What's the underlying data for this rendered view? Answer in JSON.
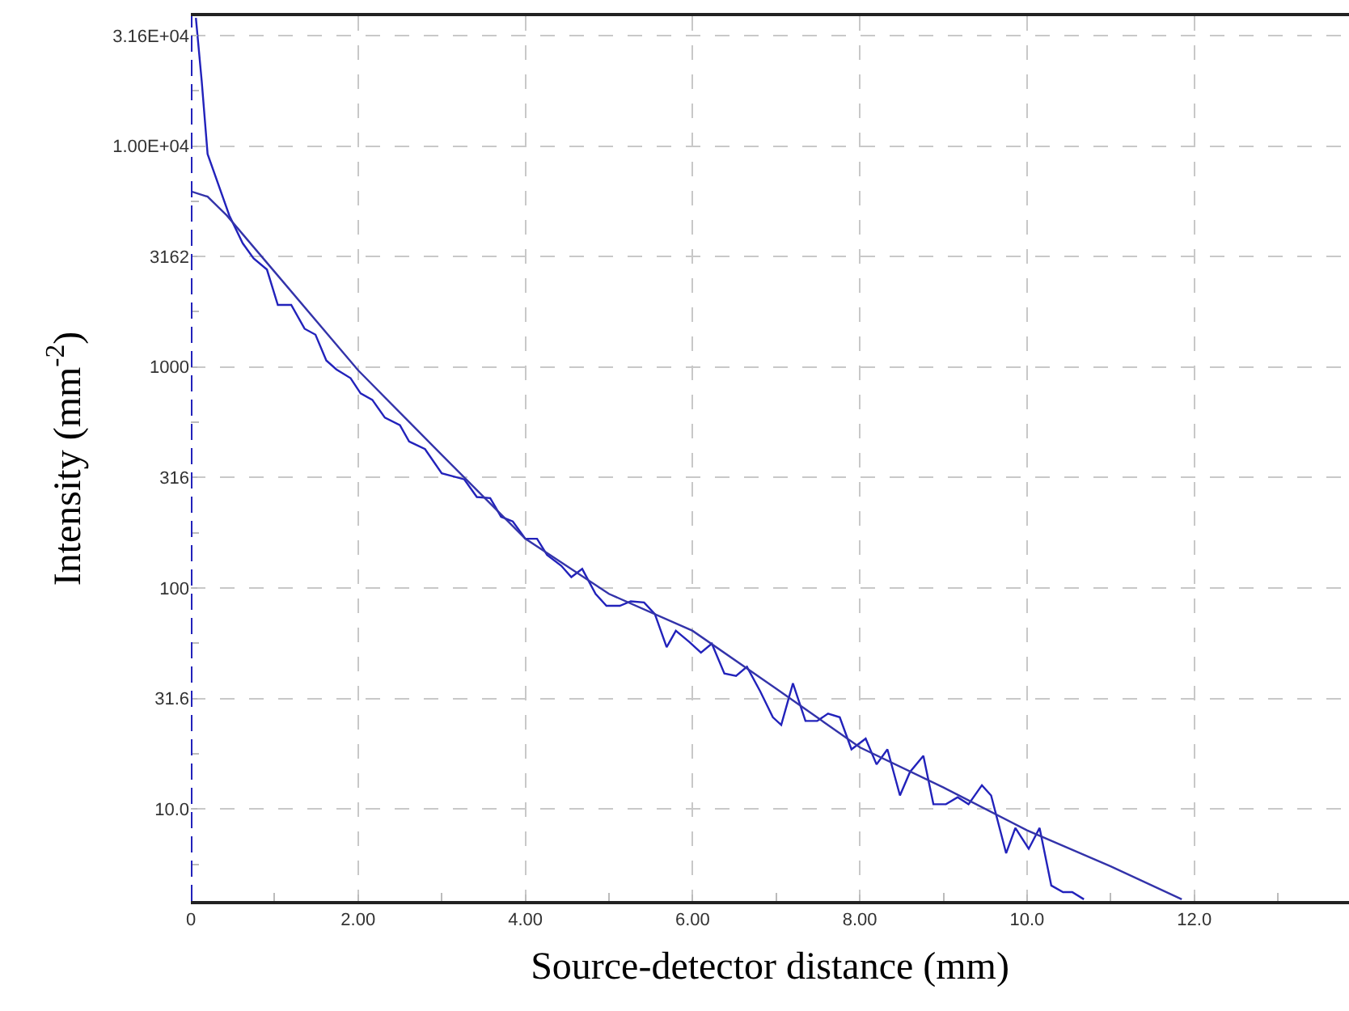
{
  "chart_data": {
    "type": "line",
    "xlabel": "Source-detector distance (mm)",
    "ylabel": "Intensity (mm$^{-2}$)",
    "log": "y",
    "grid": true,
    "marker": "none",
    "xlim": [
      0,
      13.85
    ],
    "ylim": [
      3.83,
      38700
    ],
    "xticks": [
      0,
      {
        "value": 1,
        "label": null
      },
      {
        "value": 2,
        "label": "2.00"
      },
      {
        "value": 3,
        "label": null
      },
      {
        "value": 4,
        "label": "4.00"
      },
      {
        "value": 5,
        "label": null
      },
      {
        "value": 6,
        "label": "6.00"
      },
      {
        "value": 7,
        "label": null
      },
      {
        "value": 8,
        "label": "8.00"
      },
      {
        "value": 9,
        "label": null
      },
      {
        "value": 10,
        "label": "10.0"
      },
      {
        "value": 11,
        "label": null
      },
      {
        "value": 12,
        "label": "12.0"
      },
      {
        "value": 13,
        "label": null
      }
    ],
    "yticks": [
      {
        "value": 5.62,
        "label": null
      },
      {
        "value": 10,
        "label": "10.0"
      },
      {
        "value": 17.8,
        "label": null
      },
      31.6,
      {
        "value": 56.2,
        "label": null
      },
      100,
      {
        "value": 178,
        "label": null
      },
      316,
      {
        "value": 562,
        "label": null
      },
      1000,
      {
        "value": 1778,
        "label": null
      },
      3162,
      {
        "value": 5623,
        "label": null
      },
      {
        "value": 10000,
        "label": "1.00E+04"
      },
      {
        "value": 17783,
        "label": null
      },
      {
        "value": 31600,
        "label": "3.16E+04"
      }
    ],
    "ref_lines": [
      {
        "axis": "x",
        "value": 0,
        "color": "#2222bb",
        "line_style": "dashed"
      }
    ],
    "series": [
      {
        "color": "#2222bb",
        "x": [
          0.06,
          0.13,
          0.2,
          0.46,
          0.62,
          0.75,
          0.91,
          1.04,
          1.2,
          1.36,
          1.49,
          1.62,
          1.74,
          1.91,
          2.03,
          2.17,
          2.32,
          2.5,
          2.61,
          2.8,
          3.0,
          3.27,
          3.42,
          3.58,
          3.71,
          3.85,
          4.0,
          4.14,
          4.26,
          4.43,
          4.55,
          4.68,
          4.84,
          4.97,
          5.13,
          5.26,
          5.42,
          5.55,
          5.69,
          5.8,
          5.96,
          6.1,
          6.23,
          6.38,
          6.52,
          6.65,
          6.81,
          6.96,
          7.06,
          7.2,
          7.35,
          7.49,
          7.62,
          7.76,
          7.9,
          8.07,
          8.2,
          8.33,
          8.48,
          8.6,
          8.76,
          8.88,
          9.03,
          9.17,
          9.3,
          9.46,
          9.57,
          9.75,
          9.86,
          10.02,
          10.15,
          10.29,
          10.43,
          10.54,
          10.68
        ],
        "values": [
          38000,
          19600,
          9200,
          4850,
          3630,
          3100,
          2760,
          1910,
          1910,
          1490,
          1400,
          1070,
          975,
          890,
          760,
          710,
          590,
          545,
          460,
          425,
          330,
          310,
          258,
          255,
          210,
          200,
          167,
          167,
          141,
          126,
          112,
          122,
          94,
          83,
          83,
          87,
          86,
          76,
          54,
          64,
          57,
          51,
          56,
          41,
          40,
          44,
          34,
          26,
          24,
          37,
          25,
          25,
          27,
          26,
          18.6,
          20.8,
          15.9,
          18.6,
          11.5,
          14.7,
          17.4,
          10.5,
          10.5,
          11.3,
          10.5,
          12.8,
          11.5,
          6.3,
          8.2,
          6.6,
          8.2,
          4.5,
          4.2,
          4.2,
          3.9
        ]
      },
      {
        "color": "#3333aa",
        "x": [
          0,
          0.2,
          0.43,
          1,
          2,
          3,
          4,
          5,
          6,
          7,
          8,
          9,
          10,
          11,
          11.85
        ],
        "values": [
          6240,
          5900,
          4850,
          2700,
          967,
          400,
          167,
          94,
          64,
          35,
          19,
          12.5,
          8.0,
          5.5,
          3.9
        ]
      }
    ]
  }
}
